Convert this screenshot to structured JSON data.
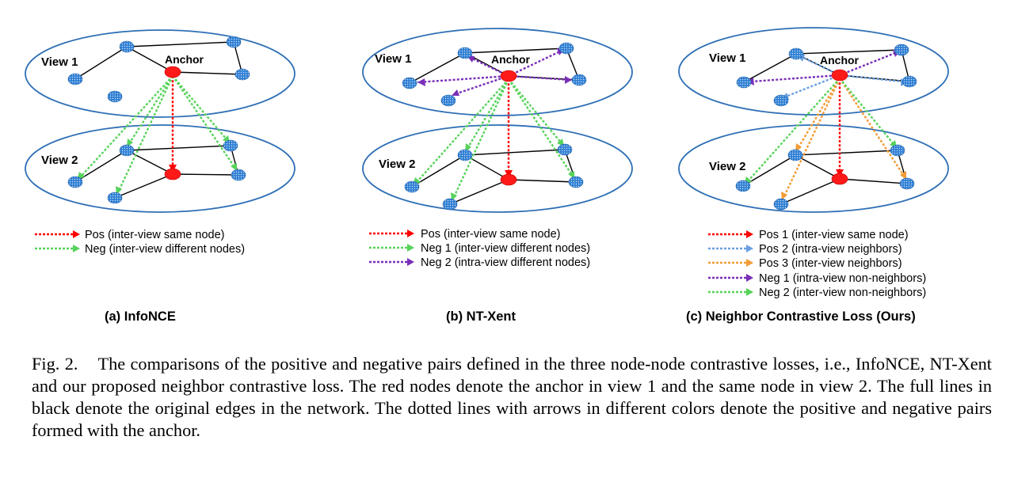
{
  "figure": {
    "panels": [
      {
        "id": "a",
        "view1_label": "View 1",
        "view2_label": "View 2",
        "anchor_label": "Anchor",
        "legend": [
          {
            "style": "pos",
            "color": "#ff0000",
            "text": "Pos (inter-view same node)"
          },
          {
            "style": "neg",
            "color": "#57d35a",
            "text": "Neg (inter-view different nodes)"
          }
        ],
        "subcaption": "(a) InfoNCE"
      },
      {
        "id": "b",
        "view1_label": "View 1",
        "view2_label": "View 2",
        "anchor_label": "Anchor",
        "legend": [
          {
            "style": "pos",
            "color": "#ff0000",
            "text": "Pos (inter-view same node)"
          },
          {
            "style": "neg",
            "color": "#57d35a",
            "text": "Neg 1 (inter-view different nodes)"
          },
          {
            "style": "neg",
            "color": "#7a2fb8",
            "text": "Neg 2 (intra-view different nodes)"
          }
        ],
        "subcaption": "(b) NT-Xent"
      },
      {
        "id": "c",
        "view1_label": "View 1",
        "view2_label": "View 2",
        "anchor_label": "Anchor",
        "legend": [
          {
            "style": "pos",
            "color": "#ff0000",
            "text": "Pos 1 (inter-view same node)"
          },
          {
            "style": "pos",
            "color": "#6a9fe0",
            "text": "Pos 2 (intra-view neighbors)"
          },
          {
            "style": "pos",
            "color": "#f39c35",
            "text": "Pos 3 (inter-view neighbors)"
          },
          {
            "style": "neg",
            "color": "#7a2fb8",
            "text": "Neg 1 (intra-view non-neighbors)"
          },
          {
            "style": "neg",
            "color": "#57d35a",
            "text": "Neg 2 (inter-view non-neighbors)"
          }
        ],
        "subcaption": "(c) Neighbor Contrastive Loss (Ours)"
      }
    ],
    "colors": {
      "ellipse": "#2e6fb5",
      "node": "#2f7fd3",
      "anchor": "#ff1a1a",
      "edge": "#000000"
    }
  },
  "caption": "Fig. 2.    The comparisons of the positive and negative pairs defined in the three node-node contrastive losses, i.e., InfoNCE, NT-Xent and our proposed neighbor contrastive loss. The red nodes denote the anchor in view 1 and the same node in view 2. The full lines in black denote the original edges in the network. The dotted lines with arrows in different colors denote the positive and negative pairs formed with the anchor."
}
